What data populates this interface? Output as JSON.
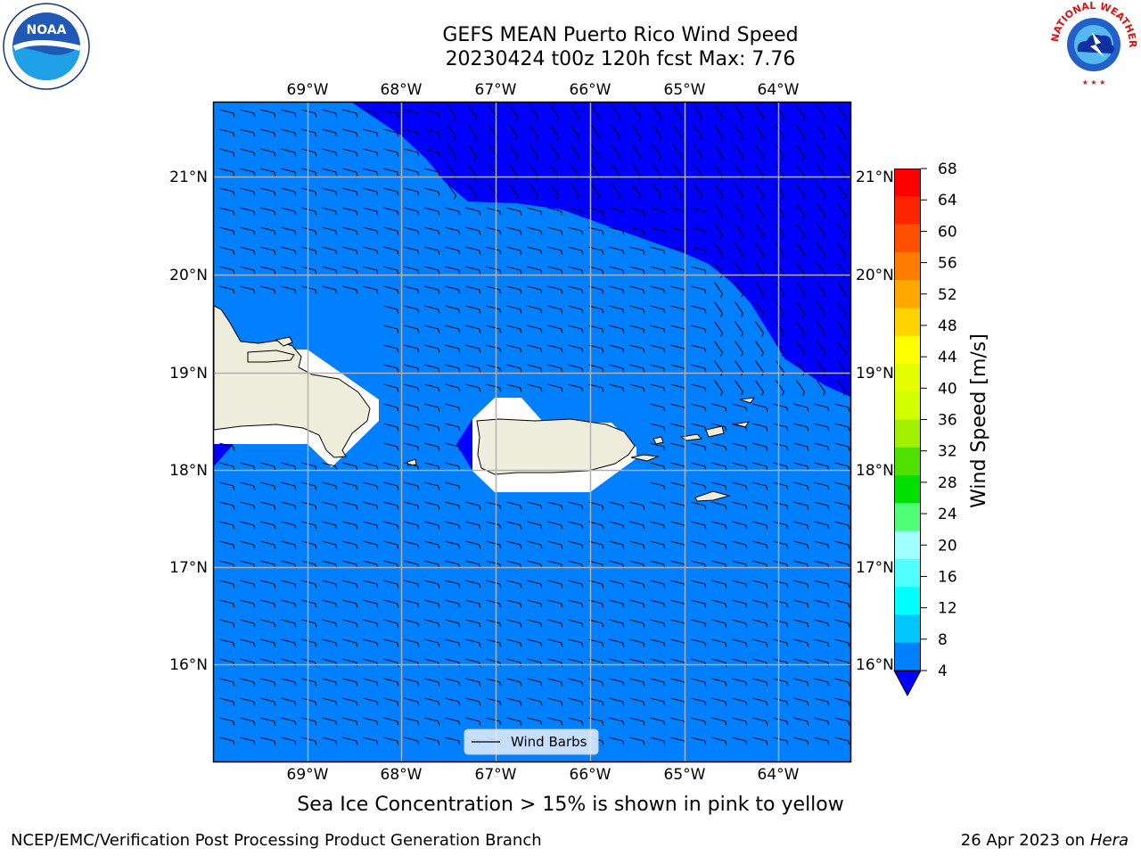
{
  "title": {
    "line1": "GEFS MEAN Puerto Rico Wind Speed",
    "line2": "20230424 t00z 120h fcst   Max: 7.76"
  },
  "map": {
    "lon_labels": [
      "69°W",
      "68°W",
      "67°W",
      "66°W",
      "65°W",
      "64°W"
    ],
    "lat_labels": [
      "21°N",
      "20°N",
      "19°N",
      "18°N",
      "17°N",
      "16°N"
    ],
    "extent": {
      "lon_min": -70.0,
      "lon_max": -63.25,
      "lat_min": 15.0,
      "lat_max": 21.75
    },
    "colors": {
      "ocean_low": "#0080ff",
      "ocean_very_low": "#0000ff",
      "land": "#efeedc",
      "masked": "#ffffff",
      "grid": "#b0b0b0"
    },
    "legend": {
      "label": "Wind Barbs",
      "placement": "bottom-center"
    }
  },
  "colorbar": {
    "label": "Wind Speed [m/s]",
    "ticks": [
      "68",
      "64",
      "60",
      "56",
      "52",
      "48",
      "44",
      "40",
      "36",
      "32",
      "28",
      "24",
      "20",
      "16",
      "12",
      "8",
      "4"
    ],
    "colors": [
      "#ff0000",
      "#ff2400",
      "#ff5000",
      "#ff7c00",
      "#ffa800",
      "#ffd200",
      "#ffff00",
      "#e6ff00",
      "#d2ff00",
      "#a0f000",
      "#50e000",
      "#00e000",
      "#50ff78",
      "#a0ffff",
      "#50ffff",
      "#00ffff",
      "#00c8ff",
      "#0080ff"
    ],
    "extend_color": "#0000ff"
  },
  "caption": "Sea Ice Concentration > 15% is shown in pink to yellow",
  "footer": {
    "left": "NCEP/EMC/Verification Post Processing Product Generation Branch",
    "right_date": "26 Apr 2023 on ",
    "right_host": "Hera"
  },
  "logos": {
    "noaa_text": "NOAA",
    "nws_text": "NATIONAL WEATHER SERVICE"
  }
}
